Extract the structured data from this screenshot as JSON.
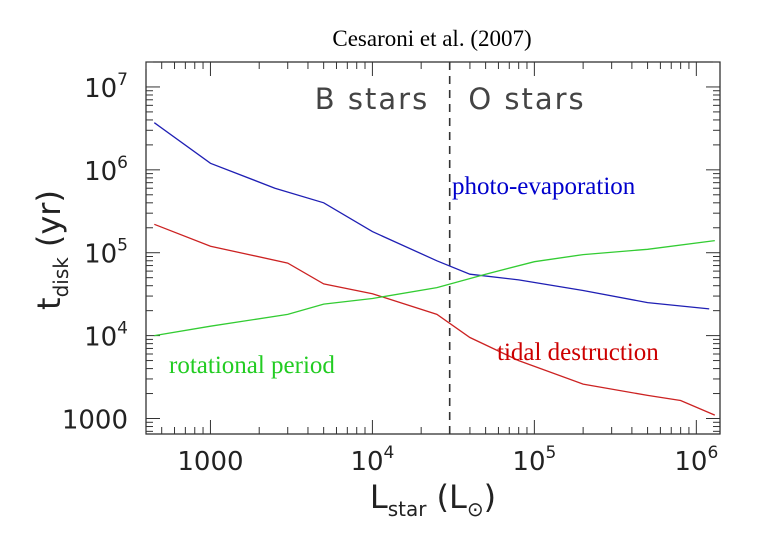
{
  "chart_data": {
    "type": "line",
    "title": "Cesaroni et al. (2007)",
    "xlabel": {
      "main": "L",
      "sub": "star",
      "unit_open": "(L",
      "unit_sym": "⊙",
      "unit_close": ")"
    },
    "ylabel": {
      "main": "t",
      "sub": "disk",
      "unit": "(yr)"
    },
    "xscale": "log",
    "yscale": "log",
    "xlim": [
      400,
      1400000
    ],
    "ylim": [
      650,
      20000000
    ],
    "x_ticks": [
      {
        "value": 1000,
        "base": "1000",
        "exp": ""
      },
      {
        "value": 10000,
        "base": "10",
        "exp": "4"
      },
      {
        "value": 100000,
        "base": "10",
        "exp": "5"
      },
      {
        "value": 1000000,
        "base": "10",
        "exp": "6"
      }
    ],
    "y_ticks": [
      {
        "value": 1000,
        "base": "1000",
        "exp": ""
      },
      {
        "value": 10000,
        "base": "10",
        "exp": "4"
      },
      {
        "value": 100000,
        "base": "10",
        "exp": "5"
      },
      {
        "value": 1000000,
        "base": "10",
        "exp": "6"
      },
      {
        "value": 10000000,
        "base": "10",
        "exp": "7"
      }
    ],
    "divider": {
      "x": 30000,
      "style": "dashed",
      "left_label": "B stars",
      "right_label": "O stars"
    },
    "series": [
      {
        "name": "photo-evaporation",
        "color": "#1f1fb4",
        "label_color": "#0000cc",
        "x": [
          450,
          1000,
          2500,
          5000,
          10000,
          25000,
          40000,
          80000,
          200000,
          500000,
          1200000
        ],
        "y": [
          3700000,
          1200000,
          600000,
          400000,
          180000,
          80000,
          55000,
          47000,
          35000,
          25000,
          21000
        ]
      },
      {
        "name": "tidal destruction",
        "color": "#cc2222",
        "label_color": "#cc0000",
        "x": [
          450,
          1000,
          3000,
          5000,
          10000,
          25000,
          40000,
          80000,
          200000,
          500000,
          800000,
          1300000
        ],
        "y": [
          220000,
          120000,
          75000,
          42000,
          32000,
          18000,
          9500,
          5000,
          2600,
          1900,
          1650,
          1100
        ]
      },
      {
        "name": "rotational period",
        "color": "#33cc33",
        "label_color": "#22cc22",
        "x": [
          450,
          1000,
          3000,
          5000,
          10000,
          25000,
          50000,
          100000,
          200000,
          500000,
          1300000
        ],
        "y": [
          10000,
          13000,
          18000,
          24000,
          28000,
          38000,
          55000,
          78000,
          95000,
          110000,
          140000
        ]
      }
    ]
  }
}
